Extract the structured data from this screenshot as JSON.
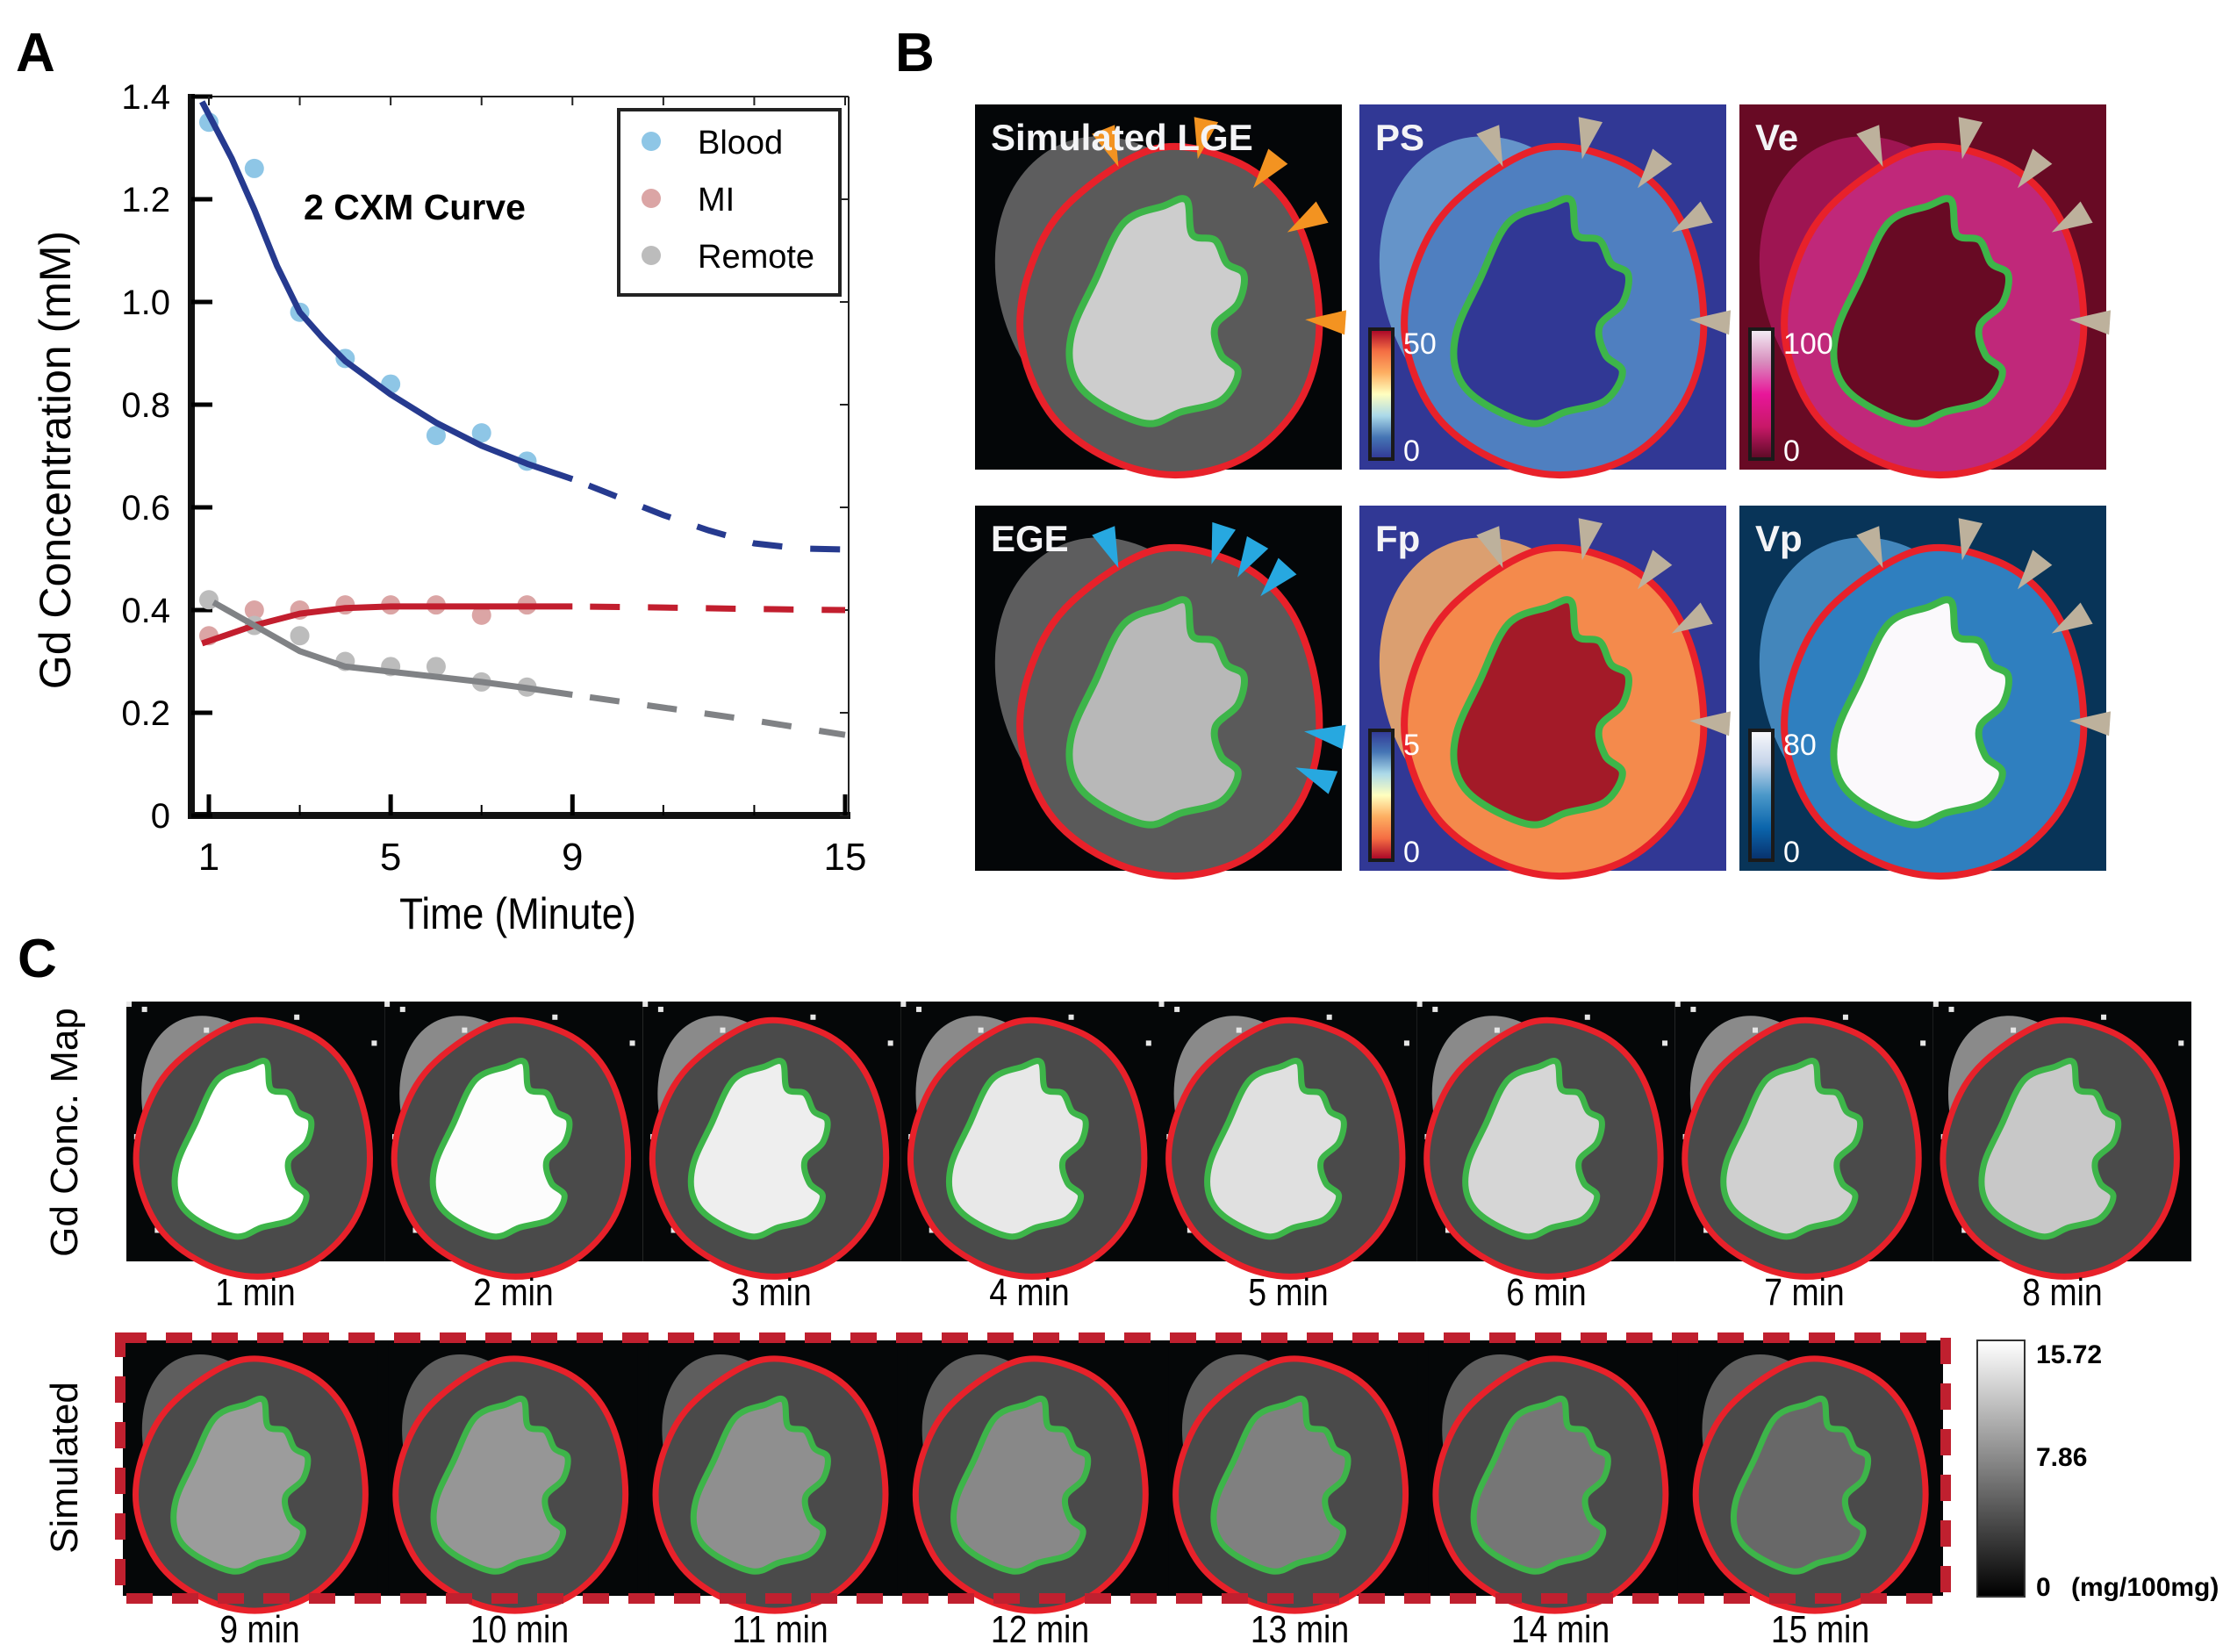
{
  "panels": {
    "A": {
      "letter": "A"
    },
    "B": {
      "letter": "B"
    },
    "C": {
      "letter": "C"
    }
  },
  "chart_data": {
    "type": "scatter",
    "title": "2 CXM Curve",
    "xlabel": "Time (Minute)",
    "ylabel": "Gd Concentration (mM)",
    "xlim": [
      0.6,
      15.1
    ],
    "ylim": [
      0,
      1.4
    ],
    "xticks": [
      1,
      5,
      9,
      15
    ],
    "xticks_minor": [
      3,
      7,
      11,
      13
    ],
    "yticks": [
      0,
      0.2,
      0.4,
      0.6,
      0.8,
      1.0,
      1.2,
      1.4
    ],
    "ytick_labels": [
      "0",
      "0.2",
      "0.4",
      "0.6",
      "0.8",
      "1.0",
      "1.2",
      "1.4"
    ],
    "grid": false,
    "legend_position": "top-right",
    "measured_x": [
      1,
      2,
      3,
      4,
      5,
      6,
      7,
      8
    ],
    "series": [
      {
        "name": "Blood",
        "marker_color": "#8ec6e6",
        "line_color": "#263a8f",
        "values": [
          1.35,
          1.26,
          0.98,
          0.89,
          0.84,
          0.74,
          0.745,
          0.69
        ],
        "fit_solid": [
          [
            0.85,
            1.39
          ],
          [
            1.5,
            1.28
          ],
          [
            2,
            1.18
          ],
          [
            2.5,
            1.07
          ],
          [
            3,
            0.98
          ],
          [
            3.5,
            0.93
          ],
          [
            4,
            0.885
          ],
          [
            5,
            0.82
          ],
          [
            6,
            0.765
          ],
          [
            7,
            0.72
          ],
          [
            8,
            0.685
          ],
          [
            9,
            0.655
          ]
        ],
        "fit_dashed": [
          [
            9,
            0.655
          ],
          [
            10,
            0.62
          ],
          [
            11,
            0.585
          ],
          [
            12,
            0.555
          ],
          [
            13,
            0.53
          ],
          [
            14,
            0.52
          ],
          [
            15,
            0.518
          ]
        ]
      },
      {
        "name": "MI",
        "marker_color": "#dba5a5",
        "line_color": "#c21e2e",
        "values": [
          0.35,
          0.4,
          0.4,
          0.41,
          0.41,
          0.41,
          0.39,
          0.41
        ],
        "fit_solid": [
          [
            0.85,
            0.335
          ],
          [
            2,
            0.37
          ],
          [
            3,
            0.393
          ],
          [
            4,
            0.404
          ],
          [
            5,
            0.407
          ],
          [
            6,
            0.407
          ],
          [
            7,
            0.407
          ],
          [
            8,
            0.407
          ],
          [
            9,
            0.407
          ]
        ],
        "fit_dashed": [
          [
            9,
            0.407
          ],
          [
            11,
            0.405
          ],
          [
            13,
            0.402
          ],
          [
            15,
            0.4
          ]
        ]
      },
      {
        "name": "Remote",
        "marker_color": "#bcbcbc",
        "line_color": "#808285",
        "values": [
          0.42,
          0.37,
          0.35,
          0.3,
          0.29,
          0.29,
          0.26,
          0.25
        ],
        "fit_solid": [
          [
            1.1,
            0.415
          ],
          [
            2,
            0.37
          ],
          [
            3,
            0.32
          ],
          [
            4,
            0.29
          ],
          [
            5,
            0.28
          ],
          [
            6,
            0.27
          ],
          [
            7,
            0.26
          ],
          [
            8,
            0.248
          ],
          [
            9,
            0.235
          ]
        ],
        "fit_dashed": [
          [
            9,
            0.235
          ],
          [
            11,
            0.21
          ],
          [
            13,
            0.185
          ],
          [
            15,
            0.157
          ]
        ]
      }
    ]
  },
  "panel_b": {
    "images": [
      {
        "key": "simulated_lge",
        "title": "Simulated LGE",
        "bg": "#040608",
        "arrow_color": "#f39321",
        "arrow_count": 5
      },
      {
        "key": "ps",
        "title": "PS",
        "bg": "#313895",
        "colorbar": {
          "max": "50",
          "min": "0",
          "stops": [
            "#313695",
            "#4575b4",
            "#abd9e9",
            "#ffffbf",
            "#fdae61",
            "#f46d43",
            "#a50026"
          ]
        },
        "arrow_color": "#bdb19c",
        "arrow_count": 5
      },
      {
        "key": "ve",
        "title": "Ve",
        "bg": "#680a24",
        "colorbar": {
          "max": "100",
          "min": "0",
          "stops": [
            "#5a0a24",
            "#c81868",
            "#e8169a",
            "#d88ebe",
            "#f4f0f6"
          ]
        },
        "arrow_color": "#bdb19c",
        "arrow_count": 5
      },
      {
        "key": "ege",
        "title": "EGE",
        "bg": "#040608",
        "arrow_color": "#27a8e0",
        "arrow_count": 6
      },
      {
        "key": "fp",
        "title": "Fp",
        "bg": "#313895",
        "colorbar": {
          "max": "5",
          "min": "0",
          "stops": [
            "#a50026",
            "#f46d43",
            "#fdae61",
            "#ffffbf",
            "#abd9e9",
            "#4575b4",
            "#313695"
          ]
        },
        "arrow_color": "#bdb19c",
        "arrow_count": 5
      },
      {
        "key": "vp",
        "title": "Vp",
        "bg": "#083458",
        "colorbar": {
          "max": "80",
          "min": "0",
          "stops": [
            "#08306b",
            "#0b65ac",
            "#4a98c9",
            "#c6d5ea",
            "#fbf9fc"
          ]
        },
        "arrow_color": "#bdb19c",
        "arrow_count": 5
      }
    ]
  },
  "panel_c": {
    "row1_label": "Gd Conc. Map",
    "row2_label": "Simulated",
    "row1_tiles": [
      {
        "label": "1 min",
        "blood_gray": 255
      },
      {
        "label": "2 min",
        "blood_gray": 252
      },
      {
        "label": "3 min",
        "blood_gray": 238
      },
      {
        "label": "4 min",
        "blood_gray": 232
      },
      {
        "label": "5 min",
        "blood_gray": 224
      },
      {
        "label": "6 min",
        "blood_gray": 214
      },
      {
        "label": "7 min",
        "blood_gray": 208
      },
      {
        "label": "8 min",
        "blood_gray": 200
      }
    ],
    "row2_tiles": [
      {
        "label": "9 min",
        "blood_gray": 156
      },
      {
        "label": "10 min",
        "blood_gray": 150
      },
      {
        "label": "11 min",
        "blood_gray": 143
      },
      {
        "label": "12 min",
        "blood_gray": 136
      },
      {
        "label": "13 min",
        "blood_gray": 128
      },
      {
        "label": "14 min",
        "blood_gray": 118
      },
      {
        "label": "15 min",
        "blood_gray": 104
      }
    ],
    "colorbar": {
      "max": "15.72",
      "mid": "7.86",
      "min": "0",
      "unit": "(mg/100mg)"
    },
    "dashed_border_color": "#c0202f",
    "epi_contour_color": "#e8212a",
    "endo_contour_color": "#3db549"
  }
}
